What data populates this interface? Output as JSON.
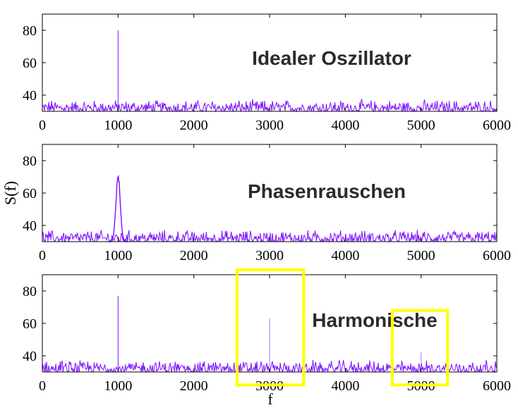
{
  "chart_data": [
    {
      "type": "line",
      "title": "Idealer Oszillator",
      "xlabel": "",
      "ylabel": "",
      "xlim": [
        0,
        6000
      ],
      "ylim": [
        30,
        90
      ],
      "xticks": [
        0,
        1000,
        2000,
        3000,
        4000,
        5000,
        6000
      ],
      "yticks": [
        40,
        60,
        80
      ],
      "noise_floor": [
        30,
        36
      ],
      "peaks": [
        {
          "x": 1000,
          "y": 80
        }
      ]
    },
    {
      "type": "line",
      "title": "Phasenrauschen",
      "xlabel": "",
      "ylabel": "S(f)",
      "xlim": [
        0,
        6000
      ],
      "ylim": [
        30,
        90
      ],
      "xticks": [
        0,
        1000,
        2000,
        3000,
        4000,
        5000,
        6000
      ],
      "yticks": [
        40,
        60,
        80
      ],
      "noise_floor": [
        30,
        36
      ],
      "peaks": [
        {
          "x": 1000,
          "y": 70,
          "width": 60
        }
      ]
    },
    {
      "type": "line",
      "title": "Harmonische",
      "xlabel": "f",
      "ylabel": "",
      "xlim": [
        0,
        6000
      ],
      "ylim": [
        30,
        90
      ],
      "xticks": [
        0,
        1000,
        2000,
        3000,
        4000,
        5000,
        6000
      ],
      "yticks": [
        40,
        60,
        80
      ],
      "noise_floor": [
        30,
        36
      ],
      "peaks": [
        {
          "x": 1000,
          "y": 77
        },
        {
          "x": 3000,
          "y": 63
        },
        {
          "x": 5000,
          "y": 42
        }
      ],
      "highlight_boxes": [
        {
          "x": [
            2570,
            3450
          ],
          "y": [
            22,
            93
          ]
        },
        {
          "x": [
            4620,
            5350
          ],
          "y": [
            22,
            68
          ]
        }
      ],
      "highlight_color": "#ffff00"
    }
  ],
  "series_color": "#7b10ff"
}
